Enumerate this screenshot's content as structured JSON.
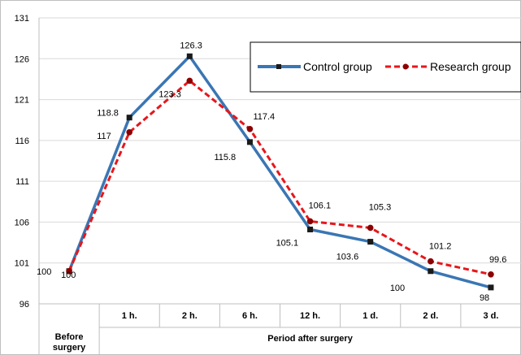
{
  "chart_data": {
    "type": "line",
    "categories": [
      "Before surgery",
      "1 h.",
      "2 h.",
      "6 h.",
      "12 h.",
      "1 d.",
      "2 d.",
      "3 d."
    ],
    "group_label": "Period after surgery",
    "ylim": [
      96,
      131
    ],
    "yticks": [
      96,
      101,
      106,
      111,
      116,
      121,
      126,
      131
    ],
    "grid": true,
    "legend_position": "top-right",
    "series": [
      {
        "name": "Control group",
        "color": "#3a76b4",
        "style": "solid",
        "marker": "square",
        "values": [
          100,
          118.8,
          126.3,
          115.8,
          105.1,
          103.6,
          100,
          98
        ]
      },
      {
        "name": "Research group",
        "color": "#e8161b",
        "style": "dashed",
        "marker": "circle",
        "values": [
          100,
          117,
          123.3,
          117.4,
          106.1,
          105.3,
          101.2,
          99.6
        ]
      }
    ]
  }
}
